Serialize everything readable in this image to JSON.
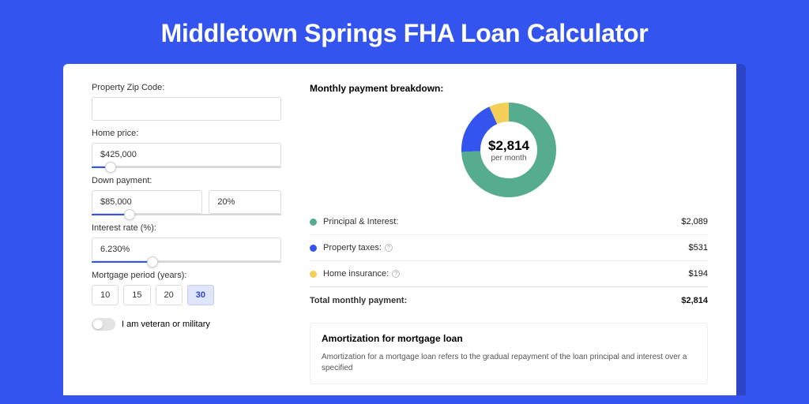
{
  "page_title": "Middletown Springs FHA Loan Calculator",
  "colors": {
    "page_bg": "#3454ef",
    "card_shadow": "#2b45c6",
    "principal": "#55ac8e",
    "taxes": "#3454ef",
    "insurance": "#f3cf57",
    "track_bg": "#eef0f2"
  },
  "form": {
    "zip_label": "Property Zip Code:",
    "zip_value": "",
    "home_price_label": "Home price:",
    "home_price_value": "$425,000",
    "home_price_slider_pct": 10,
    "down_payment_label": "Down payment:",
    "down_payment_value": "$85,000",
    "down_payment_pct": "20%",
    "down_payment_slider_pct": 20,
    "interest_label": "Interest rate (%):",
    "interest_value": "6.230%",
    "interest_slider_pct": 32,
    "period_label": "Mortgage period (years):",
    "periods": [
      "10",
      "15",
      "20",
      "30"
    ],
    "period_selected_index": 3,
    "veteran_label": "I am veteran or military",
    "veteran_on": false
  },
  "breakdown": {
    "title": "Monthly payment breakdown:",
    "center_amount": "$2,814",
    "center_sub": "per month",
    "items": [
      {
        "label": "Principal & Interest:",
        "value": "$2,089",
        "color": "#55ac8e",
        "frac": 0.742,
        "info": false
      },
      {
        "label": "Property taxes:",
        "value": "$531",
        "color": "#3454ef",
        "frac": 0.189,
        "info": true
      },
      {
        "label": "Home insurance:",
        "value": "$194",
        "color": "#f3cf57",
        "frac": 0.069,
        "info": true
      }
    ],
    "total_label": "Total monthly payment:",
    "total_value": "$2,814"
  },
  "donut": {
    "r": 48,
    "stroke": 24
  },
  "amort": {
    "title": "Amortization for mortgage loan",
    "text": "Amortization for a mortgage loan refers to the gradual repayment of the loan principal and interest over a specified"
  }
}
